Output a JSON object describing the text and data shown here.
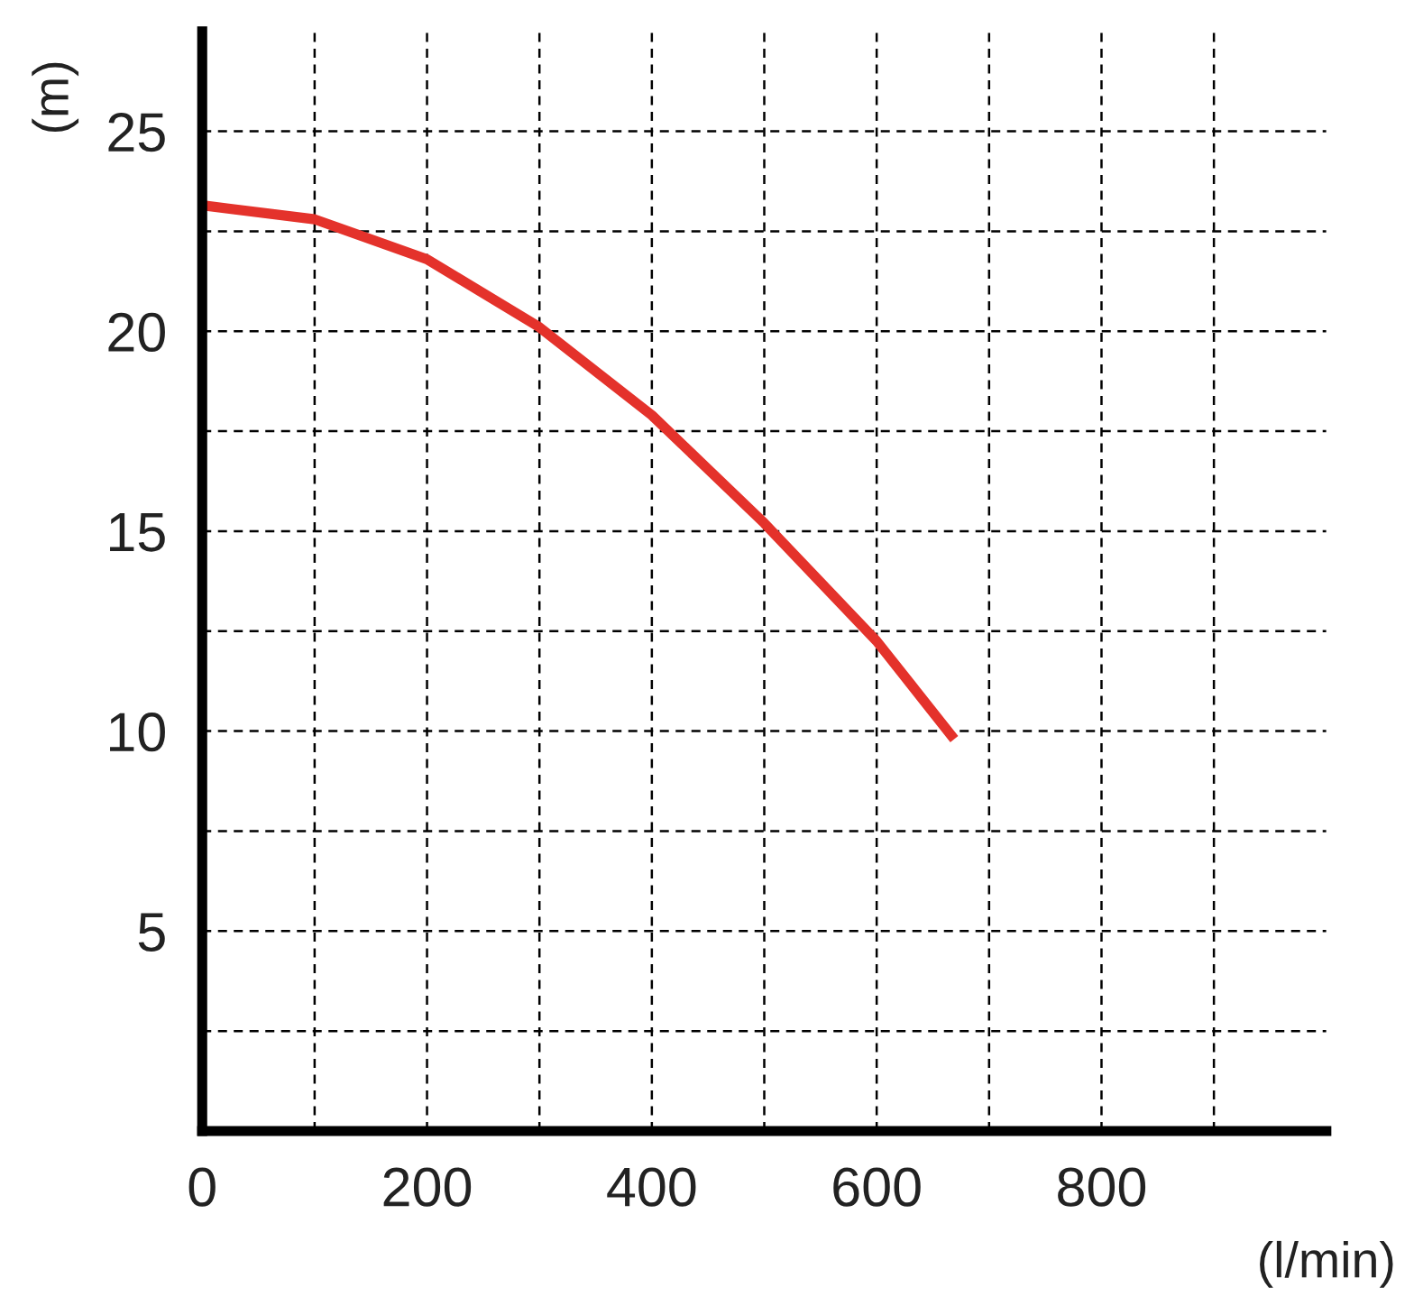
{
  "chart_data": {
    "type": "line",
    "xlabel": "(l/min)",
    "ylabel": "(m)",
    "x": [
      0,
      100,
      200,
      300,
      400,
      500,
      600,
      669
    ],
    "series": [
      {
        "color": "#e4322b",
        "values": [
          23.15,
          22.8,
          21.8,
          20.1,
          17.9,
          15.2,
          12.25,
          9.8
        ]
      }
    ],
    "xlim": [
      0,
      1000
    ],
    "ylim": [
      0,
      27.5
    ],
    "xticks": [
      0,
      {
        "value": 100,
        "label": null
      },
      200,
      {
        "value": 300,
        "label": null
      },
      400,
      {
        "value": 500,
        "label": null
      },
      600,
      {
        "value": 700,
        "label": null
      },
      800,
      {
        "value": 900,
        "label": null
      }
    ],
    "yticks": [
      {
        "value": 2.5,
        "label": null
      },
      5,
      {
        "value": 7.5,
        "label": null
      },
      10,
      {
        "value": 12.5,
        "label": null
      },
      15,
      {
        "value": 17.5,
        "label": null
      },
      20,
      {
        "value": 22.5,
        "label": null
      },
      25
    ],
    "grid": true,
    "line_style": "solid",
    "marker": "none"
  }
}
